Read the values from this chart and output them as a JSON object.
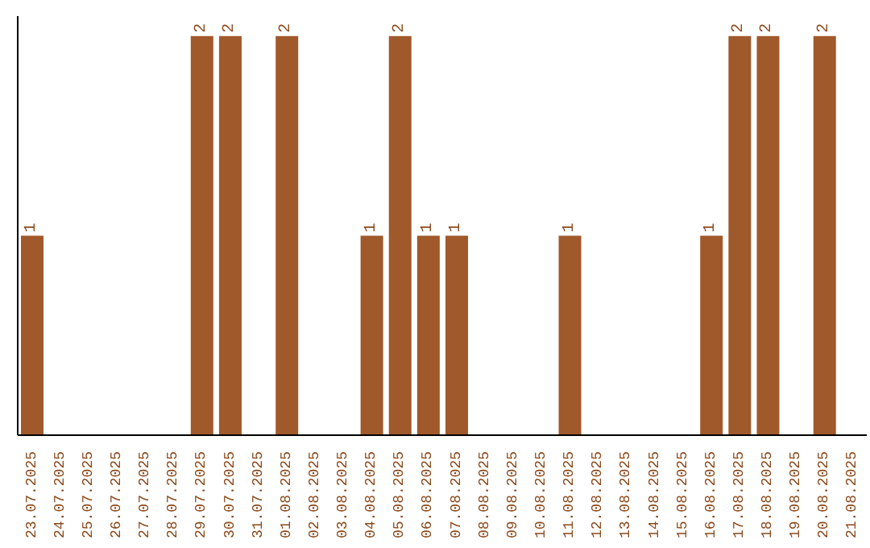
{
  "chart_data": {
    "type": "bar",
    "categories": [
      "23.07.2025",
      "24.07.2025",
      "25.07.2025",
      "26.07.2025",
      "27.07.2025",
      "28.07.2025",
      "29.07.2025",
      "30.07.2025",
      "31.07.2025",
      "01.08.2025",
      "02.08.2025",
      "03.08.2025",
      "04.08.2025",
      "05.08.2025",
      "06.08.2025",
      "07.08.2025",
      "08.08.2025",
      "09.08.2025",
      "10.08.2025",
      "11.08.2025",
      "12.08.2025",
      "13.08.2025",
      "14.08.2025",
      "15.08.2025",
      "16.08.2025",
      "17.08.2025",
      "18.08.2025",
      "19.08.2025",
      "20.08.2025",
      "21.08.2025"
    ],
    "values": [
      1,
      0,
      0,
      0,
      0,
      0,
      2,
      2,
      0,
      2,
      0,
      0,
      1,
      2,
      1,
      1,
      0,
      0,
      0,
      1,
      0,
      0,
      0,
      0,
      1,
      2,
      2,
      0,
      2,
      0
    ],
    "value_labels": [
      "1",
      null,
      null,
      null,
      null,
      null,
      "2",
      "2",
      null,
      "2",
      null,
      null,
      "1",
      "2",
      "1",
      "1",
      null,
      null,
      null,
      "1",
      null,
      null,
      null,
      null,
      "1",
      "2",
      "2",
      null,
      "2",
      null
    ],
    "color": "#a0592a",
    "grid": false,
    "legend": false,
    "tick_labels": "x"
  }
}
